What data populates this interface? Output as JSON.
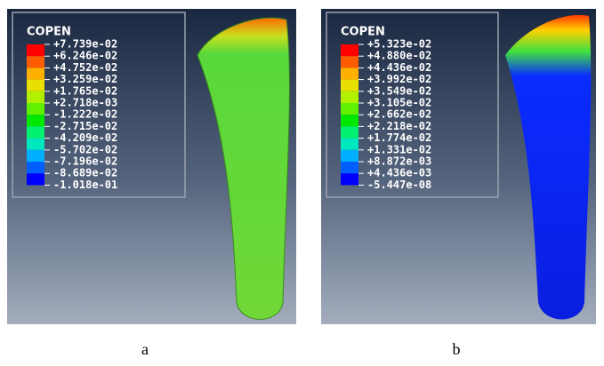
{
  "panels": [
    {
      "legend_title": "COPEN",
      "labels": [
        "+7.739e-02",
        "+6.246e-02",
        "+4.752e-02",
        "+3.259e-02",
        "+1.765e-02",
        "+2.718e-03",
        "-1.222e-02",
        "-2.715e-02",
        "-4.209e-02",
        "-5.702e-02",
        "-7.196e-02",
        "-8.689e-02",
        "-1.018e-01"
      ],
      "caption": "a"
    },
    {
      "legend_title": "COPEN",
      "labels": [
        "+5.323e-02",
        "+4.880e-02",
        "+4.436e-02",
        "+3.992e-02",
        "+3.549e-02",
        "+3.105e-02",
        "+2.662e-02",
        "+2.218e-02",
        "+1.774e-02",
        "+1.331e-02",
        "+8.872e-03",
        "+4.436e-03",
        "-5.447e-08"
      ],
      "caption": "b"
    }
  ]
}
